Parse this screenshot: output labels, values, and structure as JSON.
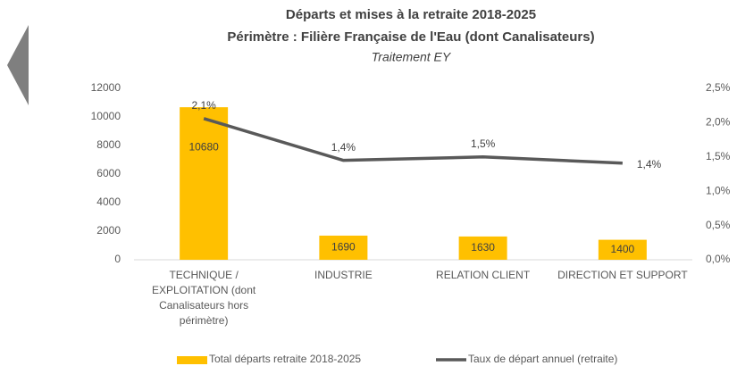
{
  "chart_data": {
    "type": "bar",
    "title": "Départs et mises à la retraite 2018-2025",
    "subtitle": "Périmètre : Filière Française de l'Eau (dont Canalisateurs)",
    "note": "Traitement EY",
    "categories": [
      "TECHNIQUE / EXPLOITATION (dont Canalisateurs hors périmètre)",
      "INDUSTRIE",
      "RELATION CLIENT",
      "DIRECTION ET SUPPORT"
    ],
    "series": [
      {
        "name": "Total départs retraite 2018-2025",
        "type": "bar",
        "color": "#FFC000",
        "values": [
          10680,
          1690,
          1630,
          1400
        ]
      },
      {
        "name": "Taux de départ annuel (retraite)",
        "type": "line",
        "axis": "y2",
        "color": "#595959",
        "values": [
          2.06,
          1.45,
          1.5,
          1.41
        ],
        "value_labels": [
          "2,1%",
          "1,4%",
          "1,5%",
          "1,4%"
        ]
      }
    ],
    "ylim": [
      0,
      12000
    ],
    "yticks": [
      0,
      2000,
      4000,
      6000,
      8000,
      10000,
      12000
    ],
    "y2lim": [
      0,
      2.5
    ],
    "y2ticks": [
      {
        "value": 0,
        "label": "0,0%"
      },
      {
        "value": 0.5,
        "label": "0,5%"
      },
      {
        "value": 1.0,
        "label": "1,0%"
      },
      {
        "value": 1.5,
        "label": "1,5%"
      },
      {
        "value": 2.0,
        "label": "2,0%"
      },
      {
        "value": 2.5,
        "label": "2,5%"
      }
    ],
    "grid": false,
    "legend": "bottom"
  }
}
